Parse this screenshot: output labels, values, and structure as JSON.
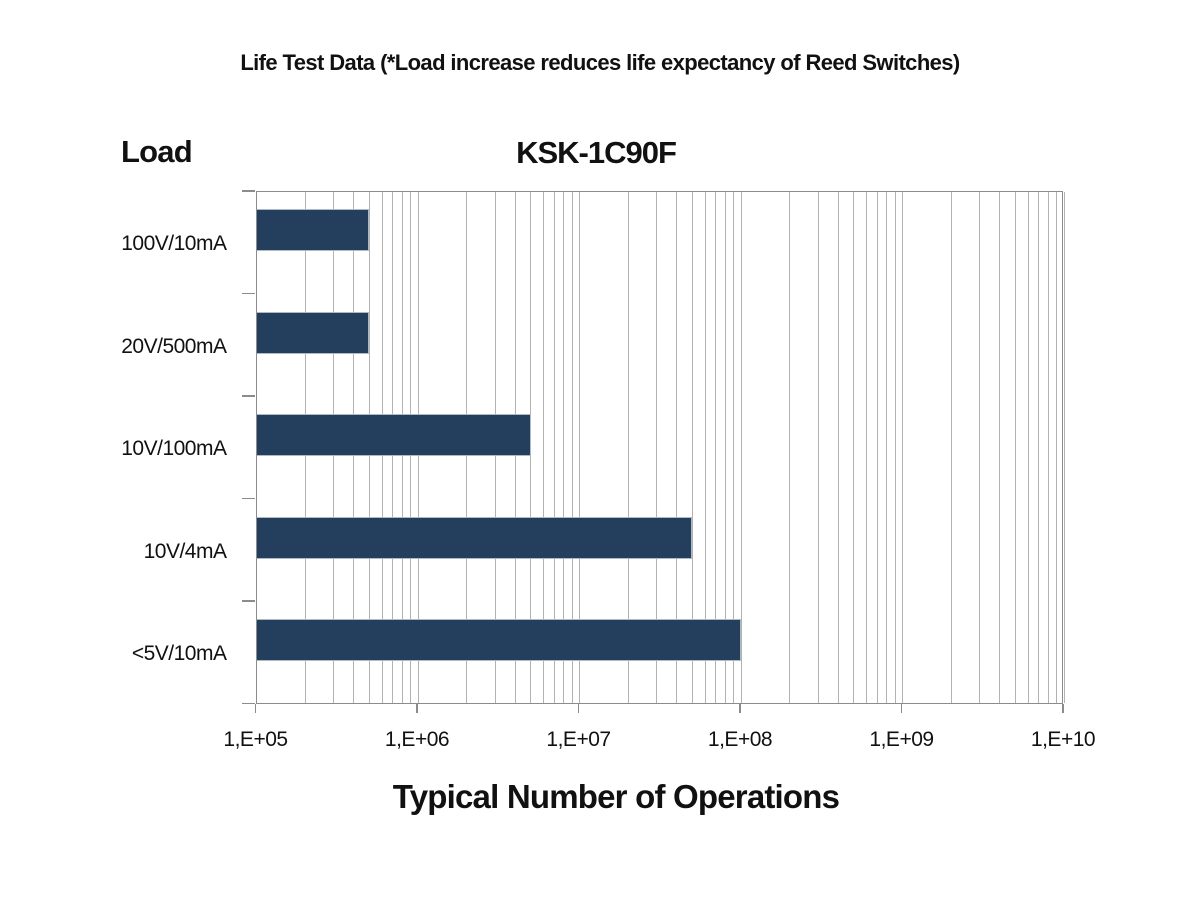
{
  "page_title": "Life Test Data (*Load increase reduces life expectancy of Reed Switches)",
  "chart_data": {
    "type": "bar",
    "orientation": "horizontal",
    "title": "KSK-1C90F",
    "ylabel": "Load",
    "xlabel": "Typical Number of Operations",
    "x_scale": "log10",
    "xlim": [
      100000,
      10000000000
    ],
    "x_tick_labels": [
      "1,E+05",
      "1,E+06",
      "1,E+07",
      "1,E+08",
      "1,E+09",
      "1,E+10"
    ],
    "grid": "vertical logarithmic major and minor gridlines",
    "legend": "none",
    "categories": [
      "100V/10mA",
      "20V/500mA",
      "10V/100mA",
      "10V/4mA",
      "<5V/10mA"
    ],
    "values": [
      500000,
      500000,
      5000000,
      50000000,
      100000000
    ],
    "colors": {
      "bar_fill": "#243F5E",
      "bar_border": "#AEB9C6",
      "gridline": "#B2B2B2",
      "axis": "#8C8C8C",
      "text": "#111111"
    }
  }
}
